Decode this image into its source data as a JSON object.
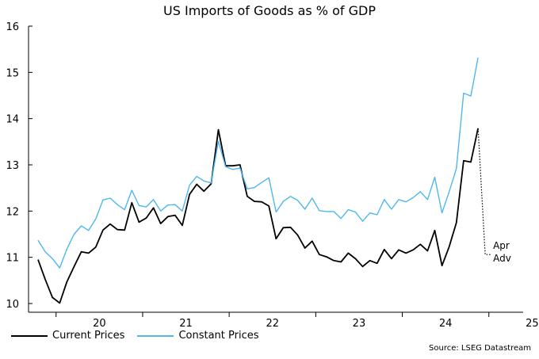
{
  "title": "US Imports of Goods as % of GDP",
  "source": "Source: LSEG Datastream",
  "chart_data": {
    "type": "line",
    "title": "US Imports of Goods as % of GDP",
    "xlabel": "",
    "ylabel": "",
    "ylim": [
      10,
      16
    ],
    "yticks": [
      "10",
      "11",
      "12",
      "13",
      "14",
      "15",
      "16"
    ],
    "xticks": [
      "20",
      "21",
      "22",
      "23",
      "24",
      "25"
    ],
    "grid": false,
    "legend_placement": "bottom-left",
    "x_start": "2019-10",
    "x_frequency": "monthly",
    "series": [
      {
        "name": "Current Prices",
        "color": "#000000",
        "values": [
          10.95,
          10.52,
          10.13,
          10.01,
          10.47,
          10.8,
          11.12,
          11.09,
          11.22,
          11.59,
          11.72,
          11.6,
          11.59,
          12.18,
          11.76,
          11.85,
          12.07,
          11.73,
          11.88,
          11.91,
          11.69,
          12.36,
          12.58,
          12.43,
          12.59,
          13.76,
          12.98,
          12.98,
          13.0,
          12.32,
          12.21,
          12.2,
          12.11,
          11.4,
          11.64,
          11.65,
          11.48,
          11.2,
          11.35,
          11.06,
          11.01,
          10.93,
          10.9,
          11.09,
          10.97,
          10.8,
          10.93,
          10.87,
          11.17,
          10.97,
          11.16,
          11.09,
          11.16,
          11.28,
          11.14,
          11.58,
          10.82,
          11.23,
          11.75,
          13.09,
          13.06,
          13.79
        ]
      },
      {
        "name": "Constant Prices",
        "color": "#4db8ec",
        "values": [
          11.37,
          11.12,
          10.97,
          10.77,
          11.18,
          11.5,
          11.68,
          11.58,
          11.83,
          12.24,
          12.28,
          12.14,
          12.03,
          12.45,
          12.12,
          12.09,
          12.25,
          12.0,
          12.13,
          12.14,
          12.0,
          12.56,
          12.75,
          12.65,
          12.61,
          13.51,
          12.96,
          12.9,
          12.93,
          12.48,
          12.51,
          12.62,
          12.72,
          11.98,
          12.21,
          12.32,
          12.23,
          12.04,
          12.28,
          12.01,
          11.99,
          11.99,
          11.84,
          12.03,
          11.98,
          11.78,
          11.96,
          11.92,
          12.25,
          12.04,
          12.25,
          12.2,
          12.29,
          12.42,
          12.25,
          12.73,
          11.96,
          12.42,
          12.92,
          14.55,
          14.49,
          15.32
        ]
      }
    ],
    "annotation": {
      "lines": [
        "Apr",
        "Adv"
      ],
      "from_value": 13.79,
      "to_value": 11.06,
      "style": "dotted"
    }
  }
}
